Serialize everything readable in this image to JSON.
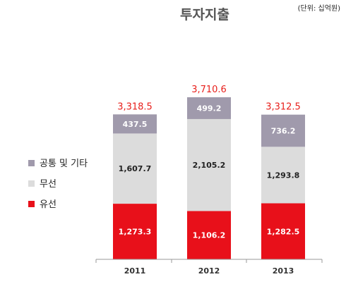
{
  "chart_data": {
    "type": "bar",
    "stacked": true,
    "title": "투자지출",
    "unit_note": "(단위: 십억원)",
    "categories": [
      "2011",
      "2012",
      "2013"
    ],
    "series": [
      {
        "name": "유선",
        "color": "#e8101a",
        "label_color": "#ffffff",
        "values": [
          1273.3,
          1106.2,
          1282.5
        ],
        "labels": [
          "1,273.3",
          "1,106.2",
          "1,282.5"
        ]
      },
      {
        "name": "무선",
        "color": "#dcdcdc",
        "label_color": "#222222",
        "values": [
          1607.7,
          2105.2,
          1293.8
        ],
        "labels": [
          "1,607.7",
          "2,105.2",
          "1,293.8"
        ]
      },
      {
        "name": "공통 및 기타",
        "color": "#a09aac",
        "label_color": "#ffffff",
        "values": [
          437.5,
          499.2,
          736.2
        ],
        "labels": [
          "437.5",
          "499.2",
          "736.2"
        ]
      }
    ],
    "totals": [
      3318.5,
      3710.6,
      3312.5
    ],
    "total_labels": [
      "3,318.5",
      "3,710.6",
      "3,312.5"
    ],
    "legend": [
      "공통 및 기타",
      "무선",
      "유선"
    ],
    "legend_position": "left",
    "grid": false
  }
}
